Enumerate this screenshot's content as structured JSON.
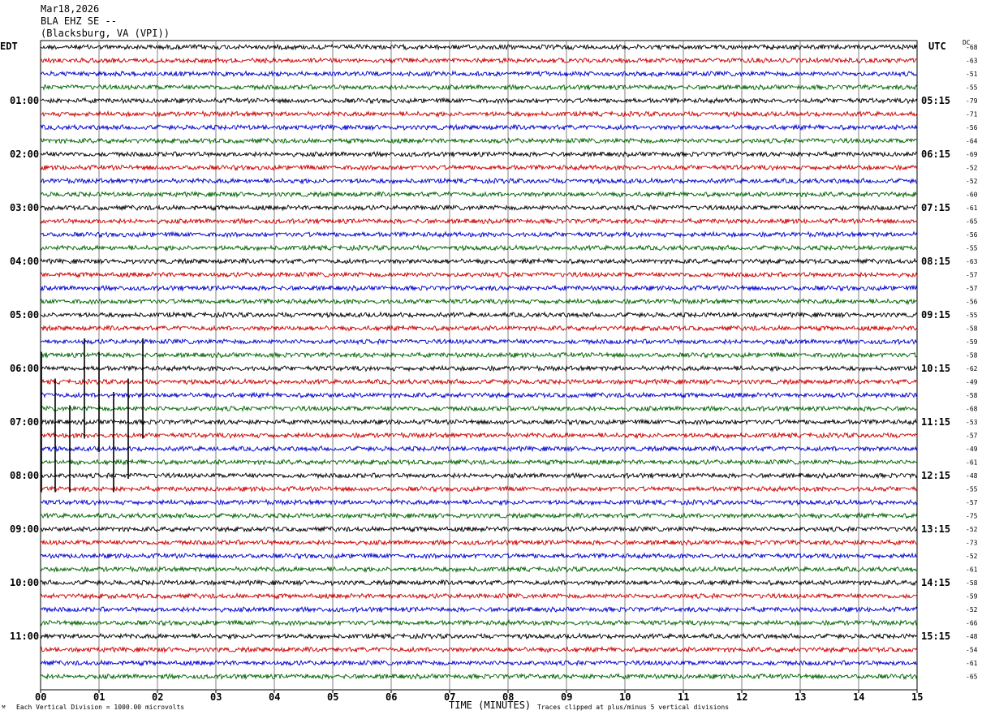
{
  "header": {
    "date": "Mar18,2026",
    "station": "BLA EHZ SE --",
    "location": "(Blacksburg, VA (VPI))"
  },
  "left_tz": "EDT",
  "right_tz": "UTC",
  "dc_label": "DC",
  "footer": {
    "scale_note": "Each Vertical Division = 1000.00 microvolts",
    "xlabel": "TIME (MINUTES)",
    "clip_note": "Traces clipped at plus/minus 5 vertical divisions"
  },
  "colors": {
    "trace_cycle": [
      "#000000",
      "#cc0000",
      "#0000cc",
      "#006400"
    ],
    "grid": "#808080"
  },
  "chart_data": {
    "type": "line",
    "title": "BLA EHZ SE --",
    "xlabel": "TIME (MINUTES)",
    "x_ticks": [
      "00",
      "01",
      "02",
      "03",
      "04",
      "05",
      "06",
      "07",
      "08",
      "09",
      "10",
      "11",
      "12",
      "13",
      "14",
      "15"
    ],
    "xlim": [
      0,
      15
    ],
    "rows_per_hour": 4,
    "row_count": 48,
    "left_hour_labels": [
      "01:00",
      "02:00",
      "03:00",
      "04:00",
      "05:00",
      "06:00",
      "07:00",
      "08:00",
      "09:00",
      "10:00",
      "11:00"
    ],
    "right_hour_labels": [
      "05:15",
      "06:15",
      "07:15",
      "08:15",
      "09:15",
      "10:15",
      "11:15",
      "12:15",
      "13:15",
      "14:15",
      "15:15"
    ],
    "dc_offsets": [
      -68,
      -63,
      -51,
      -55,
      -79,
      -71,
      -56,
      -64,
      -69,
      -52,
      -52,
      -60,
      -61,
      -65,
      -56,
      -55,
      -63,
      -57,
      -57,
      -56,
      -55,
      -58,
      -59,
      -58,
      -62,
      -49,
      -58,
      -68,
      -53,
      -57,
      -49,
      -61,
      -48,
      -55,
      -57,
      -75,
      -52,
      -73,
      -52,
      -61,
      -58,
      -59,
      -52,
      -66,
      -48,
      -54,
      -61,
      -65
    ],
    "clipped_spikes_minutes": [
      0.0,
      0.25,
      0.5,
      0.75,
      1.0,
      1.25,
      1.5,
      1.75
    ]
  }
}
